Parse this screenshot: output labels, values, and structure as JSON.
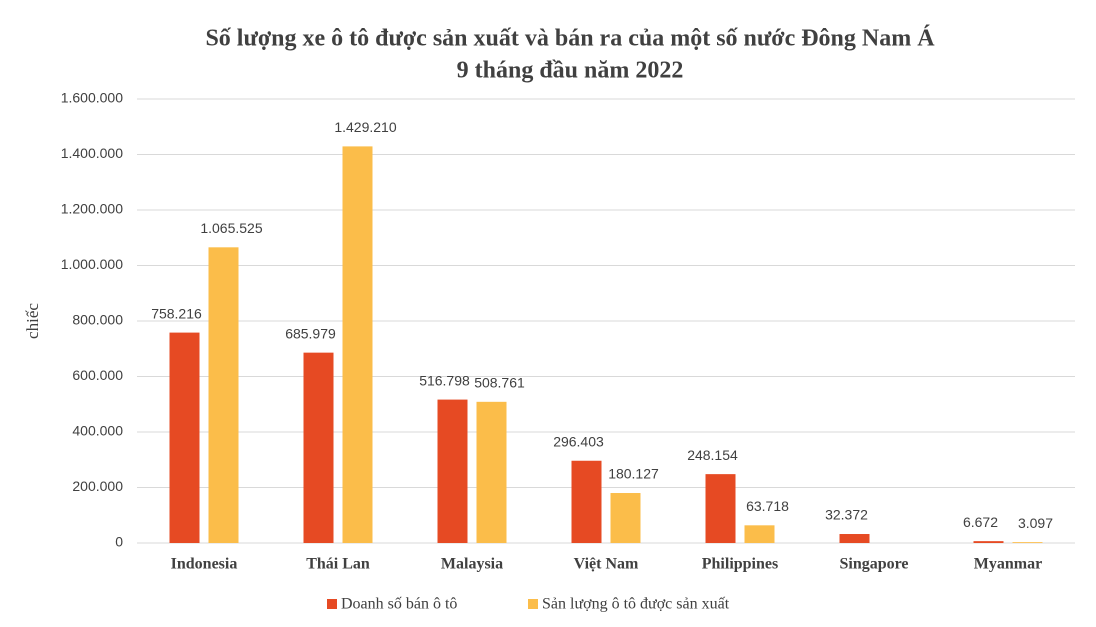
{
  "chart_data": {
    "type": "bar",
    "title": "Số lượng xe ô tô được sản xuất và bán ra của một số nước Đông Nam Á",
    "subtitle": "9 tháng đầu năm 2022",
    "y_label": "chiếc",
    "categories": [
      "Indonesia",
      "Thái Lan",
      "Malaysia",
      "Việt Nam",
      "Philippines",
      "Singapore",
      "Myanmar"
    ],
    "series": [
      {
        "name": "Doanh số bán ô tô",
        "color": "#e64a23",
        "values": [
          758216,
          685979,
          516798,
          296403,
          248154,
          32372,
          6672
        ],
        "value_labels": [
          "758.216",
          "685.979",
          "516.798",
          "296.403",
          "248.154",
          "32.372",
          "6.672"
        ]
      },
      {
        "name": "Sản lượng ô tô được sản xuất",
        "color": "#fbbd4a",
        "values": [
          1065525,
          1429210,
          508761,
          180127,
          63718,
          null,
          3097
        ],
        "value_labels": [
          "1.065.525",
          "1.429.210",
          "508.761",
          "180.127",
          "63.718",
          null,
          "3.097"
        ]
      }
    ],
    "ylim": [
      0,
      1600000
    ],
    "yticks": [
      0,
      {
        "value": 200000,
        "label": "200.000"
      },
      {
        "value": 400000,
        "label": "400.000"
      },
      {
        "value": 600000,
        "label": "600.000"
      },
      {
        "value": 800000,
        "label": "800.000"
      },
      {
        "value": 1000000,
        "label": "1.000.000"
      },
      {
        "value": 1200000,
        "label": "1.200.000"
      },
      {
        "value": 1400000,
        "label": "1.400.000"
      },
      {
        "value": 1600000,
        "label": "1.600.000"
      }
    ],
    "grid": true,
    "legend": "bottom"
  }
}
